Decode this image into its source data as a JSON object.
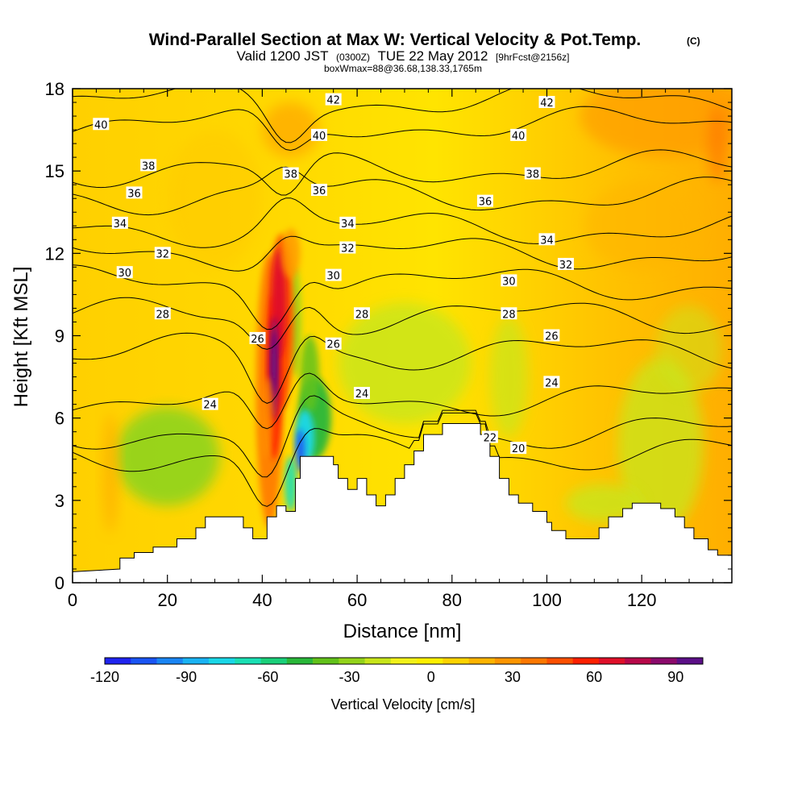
{
  "chart_data": {
    "type": "heatmap",
    "title": "Wind-Parallel Section at Max W: Vertical Velocity & Pot.Temp.",
    "title_mark": "(C)",
    "subtitle_prefix": "Valid 1200 JST",
    "subtitle_utc": "(0300Z)",
    "subtitle_date": "TUE 22 May 2012",
    "subtitle_fcst": "[9hrFcst@2156z]",
    "subtitle2": "boxWmax=88@36.68,138.33,1765m",
    "xlabel": "Distance [nm]",
    "ylabel": "Height [Kft MSL]",
    "xlim": [
      0,
      139
    ],
    "ylim": [
      0,
      18
    ],
    "x_ticks": [
      "0",
      "20",
      "40",
      "60",
      "80",
      "100",
      "120"
    ],
    "y_ticks": [
      "0",
      "3",
      "6",
      "9",
      "12",
      "15",
      "18"
    ],
    "colorbar": {
      "label": "Vertical Velocity [cm/s]",
      "range": [
        -120,
        100
      ],
      "ticks": [
        "-120",
        "-90",
        "-60",
        "-30",
        "0",
        "30",
        "60",
        "90"
      ],
      "colors": [
        "#1f24f0",
        "#1a55f5",
        "#1a86f5",
        "#1ab4f5",
        "#1ad8e8",
        "#1ae0b4",
        "#1ad07a",
        "#2ab83a",
        "#62c21a",
        "#94d41a",
        "#c8e61a",
        "#f2f21a",
        "#fff000",
        "#ffd400",
        "#ffb400",
        "#ff9600",
        "#ff7800",
        "#ff5000",
        "#ff2000",
        "#e0102a",
        "#b8084a",
        "#8c0a6c",
        "#5c1088"
      ]
    },
    "terrain": [
      [
        0,
        0.4
      ],
      [
        10,
        0.5
      ],
      [
        10,
        0.9
      ],
      [
        13,
        0.9
      ],
      [
        13,
        1.1
      ],
      [
        17,
        1.1
      ],
      [
        17,
        1.3
      ],
      [
        22,
        1.3
      ],
      [
        22,
        1.6
      ],
      [
        26,
        1.6
      ],
      [
        26,
        2.0
      ],
      [
        28,
        2.0
      ],
      [
        28,
        2.4
      ],
      [
        36,
        2.4
      ],
      [
        36,
        2.0
      ],
      [
        38,
        2.0
      ],
      [
        38,
        1.6
      ],
      [
        41,
        1.6
      ],
      [
        41,
        2.4
      ],
      [
        43,
        2.4
      ],
      [
        43,
        2.8
      ],
      [
        45,
        2.8
      ],
      [
        45,
        2.6
      ],
      [
        47,
        2.6
      ],
      [
        47,
        3.8
      ],
      [
        48,
        3.8
      ],
      [
        48,
        4.6
      ],
      [
        55,
        4.6
      ],
      [
        55,
        4.3
      ],
      [
        56,
        4.3
      ],
      [
        56,
        3.8
      ],
      [
        58,
        3.8
      ],
      [
        58,
        3.4
      ],
      [
        60,
        3.4
      ],
      [
        60,
        3.8
      ],
      [
        62,
        3.8
      ],
      [
        62,
        3.2
      ],
      [
        64,
        3.2
      ],
      [
        64,
        2.8
      ],
      [
        66,
        2.8
      ],
      [
        66,
        3.2
      ],
      [
        68,
        3.2
      ],
      [
        68,
        3.8
      ],
      [
        70,
        3.8
      ],
      [
        70,
        4.3
      ],
      [
        72,
        4.3
      ],
      [
        72,
        4.8
      ],
      [
        74,
        4.8
      ],
      [
        74,
        5.4
      ],
      [
        78,
        5.4
      ],
      [
        78,
        5.8
      ],
      [
        86,
        5.8
      ],
      [
        86,
        5.4
      ],
      [
        88,
        5.4
      ],
      [
        88,
        4.6
      ],
      [
        90,
        4.6
      ],
      [
        90,
        3.8
      ],
      [
        92,
        3.8
      ],
      [
        92,
        3.2
      ],
      [
        94,
        3.2
      ],
      [
        94,
        2.9
      ],
      [
        97,
        2.9
      ],
      [
        97,
        2.6
      ],
      [
        100,
        2.6
      ],
      [
        100,
        2.2
      ],
      [
        101,
        2.2
      ],
      [
        101,
        1.9
      ],
      [
        104,
        1.9
      ],
      [
        104,
        1.6
      ],
      [
        111,
        1.6
      ],
      [
        111,
        2.0
      ],
      [
        113,
        2.0
      ],
      [
        113,
        2.4
      ],
      [
        116,
        2.4
      ],
      [
        116,
        2.7
      ],
      [
        118,
        2.7
      ],
      [
        118,
        2.9
      ],
      [
        124,
        2.9
      ],
      [
        124,
        2.7
      ],
      [
        127,
        2.7
      ],
      [
        127,
        2.4
      ],
      [
        129,
        2.4
      ],
      [
        129,
        2.0
      ],
      [
        131,
        2.0
      ],
      [
        131,
        1.6
      ],
      [
        134,
        1.6
      ],
      [
        134,
        1.2
      ],
      [
        136,
        1.2
      ],
      [
        136,
        1.0
      ],
      [
        139,
        1.0
      ]
    ],
    "potential_temperature_contours": [
      {
        "level": 20,
        "label": "20",
        "base": 4.7,
        "labels": [
          [
            94,
            4.9
          ]
        ]
      },
      {
        "level": 22,
        "label": "22",
        "base": 5.5,
        "labels": [
          [
            88,
            5.3
          ]
        ]
      },
      {
        "level": 24,
        "label": "24",
        "base": 6.7,
        "labels": [
          [
            29,
            6.5
          ],
          [
            61,
            6.9
          ],
          [
            101,
            7.3
          ]
        ]
      },
      {
        "level": 26,
        "label": "26",
        "base": 8.4,
        "labels": [
          [
            39,
            8.9
          ],
          [
            55,
            8.7
          ],
          [
            101,
            9.0
          ]
        ]
      },
      {
        "level": 28,
        "label": "28",
        "base": 9.7,
        "labels": [
          [
            19,
            9.8
          ],
          [
            61,
            9.8
          ],
          [
            92,
            9.8
          ]
        ]
      },
      {
        "level": 30,
        "label": "30",
        "base": 10.9,
        "labels": [
          [
            11,
            11.3
          ],
          [
            55,
            11.2
          ],
          [
            92,
            11.0
          ]
        ]
      },
      {
        "level": 32,
        "label": "32",
        "base": 12.0,
        "labels": [
          [
            19,
            12.0
          ],
          [
            58,
            12.2
          ],
          [
            104,
            11.6
          ]
        ]
      },
      {
        "level": 34,
        "label": "34",
        "base": 12.9,
        "labels": [
          [
            10,
            13.1
          ],
          [
            58,
            13.1
          ],
          [
            100,
            12.5
          ]
        ]
      },
      {
        "level": 36,
        "label": "36",
        "base": 14.1,
        "labels": [
          [
            13,
            14.2
          ],
          [
            52,
            14.3
          ],
          [
            87,
            13.9
          ]
        ]
      },
      {
        "level": 38,
        "label": "38",
        "base": 15.1,
        "labels": [
          [
            16,
            15.2
          ],
          [
            46,
            14.9
          ],
          [
            97,
            14.9
          ]
        ]
      },
      {
        "level": 40,
        "label": "40",
        "base": 16.7,
        "labels": [
          [
            6,
            16.7
          ],
          [
            52,
            16.3
          ],
          [
            94,
            16.3
          ]
        ]
      },
      {
        "level": 42,
        "label": "42",
        "base": 17.6,
        "labels": [
          [
            55,
            17.6
          ],
          [
            100,
            17.5
          ]
        ]
      }
    ]
  }
}
